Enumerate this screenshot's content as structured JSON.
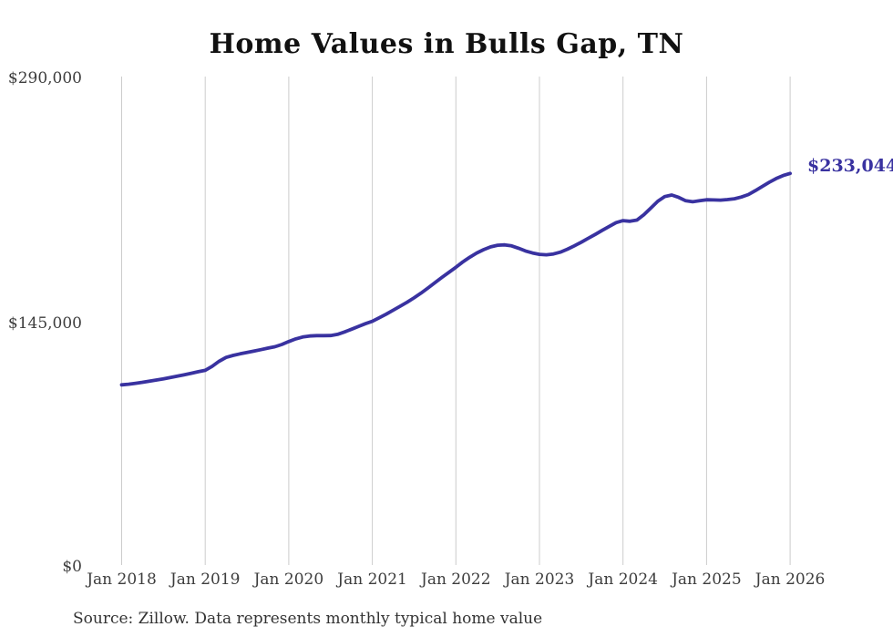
{
  "title": "Home Values in Bulls Gap, TN",
  "end_label": "$233,044",
  "source_note": "Source: Zillow. Data represents monthly typical home value",
  "colors": {
    "line": "#3932A0",
    "end_label": "#3932A0",
    "grid": "#cccccc",
    "title_text": "#111111",
    "axis_text": "#3d3d3d",
    "background": "#ffffff"
  },
  "chart_data": {
    "type": "line",
    "title": "Home Values in Bulls Gap, TN",
    "xlabel": "",
    "ylabel": "",
    "x_tick_labels": [
      "Jan 2018",
      "Jan 2019",
      "Jan 2020",
      "Jan 2021",
      "Jan 2022",
      "Jan 2023",
      "Jan 2024",
      "Jan 2025",
      "Jan 2026"
    ],
    "y_tick_labels": [
      "$0",
      "$145,000",
      "$290,000"
    ],
    "y_ticks": [
      0,
      145000,
      290000
    ],
    "ylim": [
      0,
      290000
    ],
    "grid": "vertical-only",
    "legend_position": "none",
    "x_start_month": "Jan 2018",
    "x_frequency": "monthly",
    "end_value": 233044,
    "series": [
      {
        "name": "Monthly typical home value",
        "values": [
          107500,
          107900,
          108400,
          109000,
          109700,
          110400,
          111100,
          111900,
          112700,
          113500,
          114400,
          115300,
          116100,
          118500,
          121500,
          123800,
          125000,
          125900,
          126700,
          127500,
          128400,
          129300,
          130100,
          131500,
          133200,
          134800,
          135900,
          136500,
          136700,
          136700,
          136800,
          137500,
          138900,
          140500,
          142200,
          143800,
          145200,
          147300,
          149500,
          151800,
          154200,
          156600,
          159200,
          162000,
          165000,
          168200,
          171300,
          174300,
          177300,
          180500,
          183300,
          185800,
          187800,
          189400,
          190400,
          190600,
          190000,
          188600,
          187000,
          185800,
          185000,
          184700,
          185200,
          186300,
          188000,
          190000,
          192200,
          194500,
          196800,
          199200,
          201500,
          203800,
          205000,
          204600,
          205300,
          208500,
          212500,
          216500,
          219300,
          220200,
          218800,
          216800,
          216200,
          216800,
          217400,
          217300,
          217200,
          217500,
          218000,
          219000,
          220500,
          222800,
          225300,
          227800,
          230000,
          231800,
          233044
        ]
      }
    ]
  }
}
